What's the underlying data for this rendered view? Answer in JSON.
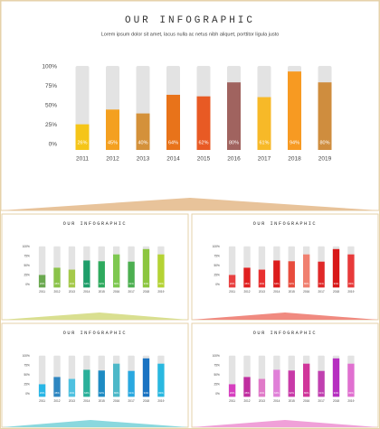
{
  "chart_data": [
    {
      "type": "bar",
      "title": "OUR INFOGRAPHIC",
      "subtitle": "Lorem ipsum dolor sit amet, lacus nulla ac netus nibh aliquet, porttitor ligula justo",
      "categories": [
        "2011",
        "2012",
        "2013",
        "2014",
        "2015",
        "2016",
        "2017",
        "2018",
        "2019"
      ],
      "values": [
        26,
        45,
        40,
        64,
        62,
        80,
        61,
        94,
        80
      ],
      "value_labels": [
        "26%",
        "45%",
        "40%",
        "64%",
        "62%",
        "80%",
        "61%",
        "94%",
        "80%"
      ],
      "colors": [
        "#f5c518",
        "#f4a020",
        "#d4913a",
        "#e8731a",
        "#e85a24",
        "#a0635f",
        "#f7b928",
        "#f79a22",
        "#cf8d3e"
      ],
      "ylim": [
        0,
        100
      ],
      "yticks": [
        {
          "value": 0,
          "label": "0%"
        },
        {
          "value": 25,
          "label": "25%"
        },
        {
          "value": 50,
          "label": "50%"
        },
        {
          "value": 75,
          "label": "75%"
        },
        {
          "value": 100,
          "label": "100%"
        }
      ]
    },
    {
      "type": "bar",
      "title": "OUR INFOGRAPHIC",
      "categories": [
        "2011",
        "2012",
        "2013",
        "2014",
        "2015",
        "2016",
        "2017",
        "2018",
        "2019"
      ],
      "values": [
        26,
        45,
        40,
        64,
        62,
        80,
        61,
        94,
        80
      ],
      "value_labels": [
        "26%",
        "45%",
        "40%",
        "64%",
        "62%",
        "80%",
        "61%",
        "94%",
        "80%"
      ],
      "colors": [
        "#6aa84f",
        "#8bc34a",
        "#a5c94a",
        "#1e9e6a",
        "#2eaa5e",
        "#7ec850",
        "#4caf50",
        "#8cc63f",
        "#b5d334"
      ],
      "ylim": [
        0,
        100
      ],
      "yticks": [
        {
          "value": 0,
          "label": "0%"
        },
        {
          "value": 25,
          "label": "25%"
        },
        {
          "value": 50,
          "label": "50%"
        },
        {
          "value": 75,
          "label": "75%"
        },
        {
          "value": 100,
          "label": "100%"
        }
      ]
    },
    {
      "type": "bar",
      "title": "OUR INFOGRAPHIC",
      "categories": [
        "2011",
        "2012",
        "2013",
        "2014",
        "2015",
        "2016",
        "2017",
        "2018",
        "2019"
      ],
      "values": [
        26,
        45,
        40,
        64,
        62,
        80,
        61,
        94,
        80
      ],
      "value_labels": [
        "26%",
        "45%",
        "40%",
        "64%",
        "62%",
        "80%",
        "61%",
        "94%",
        "80%"
      ],
      "colors": [
        "#e84040",
        "#e02020",
        "#e83030",
        "#dc1c1c",
        "#e84c3d",
        "#f08070",
        "#e02828",
        "#d81818",
        "#e83a3a"
      ],
      "ylim": [
        0,
        100
      ],
      "yticks": [
        {
          "value": 0,
          "label": "0%"
        },
        {
          "value": 25,
          "label": "25%"
        },
        {
          "value": 50,
          "label": "50%"
        },
        {
          "value": 75,
          "label": "75%"
        },
        {
          "value": 100,
          "label": "100%"
        }
      ]
    },
    {
      "type": "bar",
      "title": "OUR INFOGRAPHIC",
      "categories": [
        "2011",
        "2012",
        "2013",
        "2014",
        "2015",
        "2016",
        "2017",
        "2018",
        "2019"
      ],
      "values": [
        26,
        45,
        40,
        64,
        62,
        80,
        61,
        94,
        80
      ],
      "value_labels": [
        "26%",
        "45%",
        "40%",
        "64%",
        "62%",
        "80%",
        "61%",
        "94%",
        "80%"
      ],
      "colors": [
        "#29b6e6",
        "#2e86c1",
        "#4ec1e0",
        "#2ab09a",
        "#1e8bc3",
        "#4db8c8",
        "#29a8e0",
        "#1a73c2",
        "#29b8e0"
      ],
      "ylim": [
        0,
        100
      ],
      "yticks": [
        {
          "value": 0,
          "label": "0%"
        },
        {
          "value": 25,
          "label": "25%"
        },
        {
          "value": 50,
          "label": "50%"
        },
        {
          "value": 75,
          "label": "75%"
        },
        {
          "value": 100,
          "label": "100%"
        }
      ]
    },
    {
      "type": "bar",
      "title": "OUR INFOGRAPHIC",
      "categories": [
        "2011",
        "2012",
        "2013",
        "2014",
        "2015",
        "2016",
        "2017",
        "2018",
        "2019"
      ],
      "values": [
        26,
        45,
        40,
        64,
        62,
        80,
        61,
        94,
        80
      ],
      "value_labels": [
        "26%",
        "45%",
        "40%",
        "64%",
        "62%",
        "80%",
        "61%",
        "94%",
        "80%"
      ],
      "colors": [
        "#d63fbf",
        "#c02ea0",
        "#e07ac8",
        "#e080d8",
        "#c83aa8",
        "#d0369a",
        "#c040b0",
        "#b62fc0",
        "#e070d0"
      ],
      "ylim": [
        0,
        100
      ],
      "yticks": [
        {
          "value": 0,
          "label": "0%"
        },
        {
          "value": 25,
          "label": "25%"
        },
        {
          "value": 50,
          "label": "50%"
        },
        {
          "value": 75,
          "label": "75%"
        },
        {
          "value": 100,
          "label": "100%"
        }
      ]
    }
  ]
}
